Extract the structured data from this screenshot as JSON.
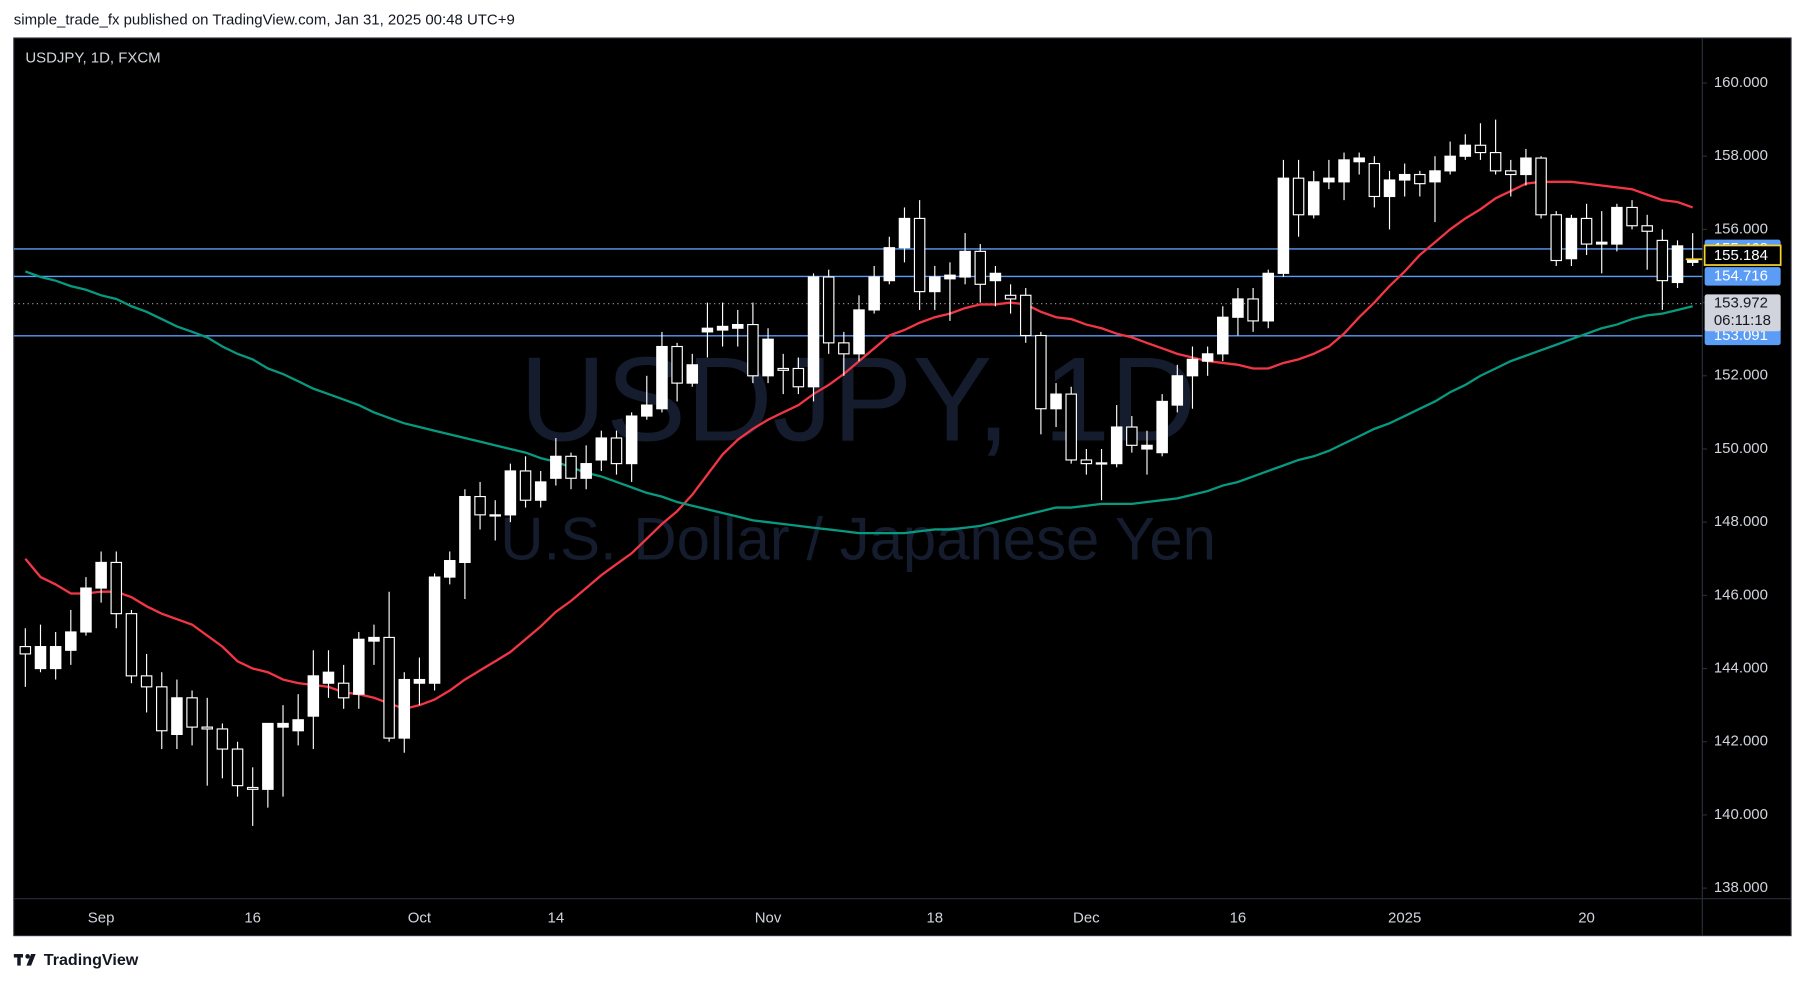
{
  "header": {
    "publisher": "simple_trade_fx published on TradingView.com, Jan 31, 2025 00:48 UTC+9"
  },
  "footer": {
    "brand": "TradingView"
  },
  "chart_data": {
    "type": "candlestick",
    "title": "USDJPY, 1D, FXCM",
    "watermark": "USDJPY, 1D",
    "subtitle": "U.S. Dollar / Japanese Yen",
    "categories": [
      null,
      null,
      null,
      null,
      null,
      "Sep",
      null,
      null,
      null,
      null,
      null,
      null,
      null,
      null,
      null,
      "16",
      null,
      null,
      null,
      null,
      null,
      null,
      null,
      null,
      null,
      null,
      "Oct",
      null,
      null,
      null,
      null,
      null,
      null,
      null,
      null,
      "14",
      null,
      null,
      null,
      null,
      null,
      null,
      null,
      null,
      null,
      null,
      null,
      null,
      null,
      "Nov",
      null,
      null,
      null,
      null,
      null,
      null,
      null,
      null,
      null,
      null,
      "18",
      null,
      null,
      null,
      null,
      null,
      null,
      null,
      null,
      null,
      "Dec",
      null,
      null,
      null,
      null,
      null,
      null,
      null,
      null,
      null,
      "16",
      null,
      null,
      null,
      null,
      null,
      null,
      null,
      null,
      null,
      null,
      "2025",
      null,
      null,
      null,
      null,
      null,
      null,
      null,
      null,
      null,
      null,
      null,
      "20",
      null,
      null,
      null,
      null,
      null,
      null,
      null
    ],
    "open": [
      144.6,
      144.0,
      144.0,
      144.5,
      145.0,
      146.2,
      146.9,
      145.5,
      143.8,
      143.5,
      142.2,
      143.2,
      142.4,
      142.35,
      141.8,
      140.75,
      140.7,
      142.4,
      142.3,
      142.7,
      143.6,
      143.6,
      143.3,
      144.75,
      144.85,
      142.1,
      143.6,
      143.6,
      146.5,
      146.9,
      148.7,
      148.2,
      148.2,
      149.4,
      148.6,
      149.2,
      149.8,
      149.2,
      149.7,
      150.3,
      149.6,
      150.9,
      151.1,
      152.8,
      151.8,
      153.2,
      153.25,
      153.3,
      153.4,
      152.0,
      152.2,
      152.2,
      151.7,
      154.7,
      152.9,
      152.6,
      153.8,
      154.6,
      155.5,
      156.3,
      154.3,
      154.65,
      154.7,
      155.4,
      154.6,
      154.2,
      154.2,
      153.1,
      151.1,
      151.5,
      149.7,
      149.6,
      149.6,
      150.6,
      150.0,
      149.9,
      151.2,
      152.0,
      152.4,
      152.6,
      153.6,
      154.1,
      153.5,
      154.8,
      157.4,
      156.4,
      157.3,
      157.3,
      157.85,
      157.8,
      156.9,
      157.35,
      157.5,
      157.3,
      157.6,
      158.0,
      158.3,
      158.1,
      157.6,
      157.5,
      157.95,
      156.4,
      155.2,
      156.3,
      155.6,
      155.6,
      156.6,
      156.1,
      155.7,
      154.55,
      155.1
    ],
    "high": [
      145.1,
      145.2,
      145.0,
      145.6,
      146.5,
      147.2,
      147.2,
      145.6,
      144.4,
      143.9,
      143.7,
      143.4,
      143.2,
      142.5,
      142.0,
      141.3,
      142.5,
      143.0,
      143.3,
      144.5,
      144.5,
      144.1,
      145.0,
      145.2,
      146.1,
      143.9,
      144.3,
      146.6,
      147.2,
      148.9,
      149.1,
      148.6,
      149.6,
      149.8,
      149.4,
      150.3,
      149.9,
      150.1,
      150.5,
      150.5,
      151.0,
      152.0,
      153.2,
      152.9,
      152.6,
      154.0,
      154.0,
      153.8,
      154.0,
      153.3,
      152.6,
      152.5,
      154.8,
      154.9,
      153.2,
      154.2,
      155.0,
      155.8,
      156.6,
      156.8,
      155.0,
      155.1,
      155.9,
      155.6,
      155.0,
      154.5,
      154.4,
      153.2,
      151.8,
      151.7,
      150.0,
      150.0,
      151.2,
      150.9,
      150.5,
      151.5,
      152.3,
      152.8,
      152.8,
      153.9,
      154.4,
      154.4,
      154.9,
      157.9,
      157.9,
      157.6,
      157.9,
      158.1,
      158.1,
      158.0,
      157.6,
      157.8,
      157.6,
      158.0,
      158.4,
      158.6,
      158.9,
      159.0,
      157.9,
      158.2,
      158.0,
      156.5,
      156.4,
      156.7,
      156.5,
      156.7,
      156.8,
      156.4,
      156.0,
      155.7,
      155.9
    ],
    "low": [
      143.5,
      143.9,
      143.7,
      144.1,
      144.9,
      145.8,
      145.1,
      143.6,
      142.8,
      141.8,
      141.8,
      141.9,
      140.8,
      141.0,
      140.5,
      139.7,
      140.2,
      140.5,
      141.9,
      141.8,
      143.2,
      142.9,
      142.9,
      144.1,
      142.0,
      141.7,
      143.0,
      143.4,
      146.3,
      145.9,
      147.8,
      147.5,
      148.0,
      148.4,
      148.4,
      149.0,
      148.9,
      148.9,
      149.4,
      149.3,
      149.1,
      150.8,
      151.0,
      151.3,
      151.7,
      152.5,
      152.8,
      152.8,
      151.8,
      151.8,
      151.5,
      151.5,
      151.3,
      152.6,
      152.0,
      152.4,
      153.7,
      154.5,
      155.1,
      153.8,
      153.8,
      153.5,
      154.5,
      154.0,
      153.9,
      153.7,
      152.9,
      150.4,
      150.6,
      149.6,
      149.3,
      148.6,
      149.5,
      149.9,
      149.3,
      149.8,
      151.0,
      151.1,
      152.0,
      152.4,
      153.1,
      153.2,
      153.3,
      154.7,
      155.8,
      156.3,
      157.1,
      156.8,
      157.5,
      156.6,
      156.0,
      156.9,
      156.9,
      156.2,
      157.5,
      157.9,
      157.9,
      157.5,
      156.9,
      157.2,
      156.3,
      155.0,
      155.0,
      155.3,
      154.8,
      155.4,
      156.0,
      154.9,
      153.8,
      154.4,
      155.0
    ],
    "close": [
      144.4,
      144.6,
      144.6,
      145.0,
      146.2,
      146.9,
      145.5,
      143.8,
      143.5,
      142.3,
      143.2,
      142.4,
      142.35,
      141.8,
      140.8,
      140.7,
      142.5,
      142.5,
      142.6,
      143.8,
      143.9,
      143.2,
      144.8,
      144.85,
      142.1,
      143.7,
      143.7,
      146.5,
      146.95,
      148.7,
      148.2,
      148.2,
      149.4,
      148.6,
      149.1,
      149.8,
      149.2,
      149.6,
      150.3,
      149.6,
      150.9,
      151.2,
      152.8,
      151.8,
      152.3,
      153.3,
      153.35,
      153.4,
      152.0,
      153.0,
      152.15,
      151.7,
      154.7,
      152.9,
      152.6,
      153.8,
      154.7,
      155.5,
      156.3,
      154.3,
      154.7,
      154.75,
      155.4,
      154.5,
      154.8,
      154.1,
      153.1,
      151.1,
      151.5,
      149.7,
      149.6,
      149.62,
      150.6,
      150.1,
      150.1,
      151.3,
      152.0,
      152.45,
      152.6,
      153.6,
      154.1,
      153.5,
      154.8,
      157.4,
      156.4,
      157.3,
      157.4,
      157.9,
      157.95,
      156.9,
      157.35,
      157.5,
      157.25,
      157.6,
      158.0,
      158.3,
      158.1,
      157.6,
      157.5,
      157.95,
      156.4,
      155.15,
      156.3,
      155.6,
      155.65,
      156.6,
      156.1,
      155.95,
      154.6,
      155.55,
      155.184
    ],
    "up_color": "#ffffff",
    "down_color": "#000000",
    "wick_color": "#ffffff",
    "lines": [
      {
        "color": "#f23645",
        "values": [
          147.0,
          146.5,
          146.3,
          146.05,
          146.05,
          146.1,
          146.1,
          145.95,
          145.7,
          145.5,
          145.35,
          145.2,
          144.9,
          144.6,
          144.2,
          144.0,
          143.9,
          143.7,
          143.6,
          143.55,
          143.5,
          143.35,
          143.3,
          143.2,
          143.05,
          142.9,
          143.0,
          143.15,
          143.4,
          143.7,
          143.95,
          144.2,
          144.45,
          144.8,
          145.15,
          145.55,
          145.85,
          146.2,
          146.55,
          146.85,
          147.15,
          147.55,
          147.95,
          148.3,
          148.75,
          149.3,
          149.85,
          150.25,
          150.55,
          150.8,
          151.0,
          151.2,
          151.5,
          151.75,
          152.05,
          152.4,
          152.75,
          153.1,
          153.25,
          153.45,
          153.6,
          153.7,
          153.85,
          153.95,
          153.95,
          154.0,
          153.95,
          153.75,
          153.6,
          153.55,
          153.4,
          153.3,
          153.15,
          153.05,
          152.9,
          152.75,
          152.6,
          152.5,
          152.4,
          152.35,
          152.3,
          152.2,
          152.2,
          152.35,
          152.45,
          152.6,
          152.8,
          153.15,
          153.6,
          154.0,
          154.45,
          154.85,
          155.3,
          155.65,
          156.0,
          156.3,
          156.55,
          156.85,
          157.05,
          157.25,
          157.3,
          157.3,
          157.3,
          157.25,
          157.2,
          157.15,
          157.1,
          156.95,
          156.8,
          156.75,
          156.6
        ]
      },
      {
        "color": "#089981",
        "values": [
          154.85,
          154.7,
          154.6,
          154.45,
          154.35,
          154.2,
          154.1,
          153.9,
          153.75,
          153.55,
          153.35,
          153.2,
          153.05,
          152.8,
          152.6,
          152.45,
          152.2,
          152.05,
          151.85,
          151.65,
          151.5,
          151.35,
          151.2,
          151.0,
          150.85,
          150.7,
          150.6,
          150.5,
          150.4,
          150.3,
          150.2,
          150.1,
          150.0,
          149.9,
          149.75,
          149.65,
          149.5,
          149.35,
          149.25,
          149.1,
          148.95,
          148.8,
          148.7,
          148.55,
          148.45,
          148.35,
          148.25,
          148.15,
          148.05,
          148.0,
          147.95,
          147.9,
          147.85,
          147.8,
          147.75,
          147.7,
          147.7,
          147.7,
          147.7,
          147.75,
          147.8,
          147.8,
          147.85,
          147.9,
          148.0,
          148.1,
          148.2,
          148.3,
          148.4,
          148.4,
          148.45,
          148.5,
          148.5,
          148.5,
          148.55,
          148.6,
          148.65,
          148.75,
          148.85,
          149.0,
          149.1,
          149.25,
          149.4,
          149.55,
          149.7,
          149.8,
          149.95,
          150.15,
          150.35,
          150.55,
          150.7,
          150.9,
          151.1,
          151.3,
          151.55,
          151.75,
          152.0,
          152.2,
          152.4,
          152.55,
          152.7,
          152.85,
          153.0,
          153.15,
          153.3,
          153.4,
          153.55,
          153.65,
          153.7,
          153.8,
          153.9
        ]
      }
    ],
    "hlines": [
      {
        "value": 155.468,
        "color": "#5b9cf6"
      },
      {
        "value": 154.716,
        "color": "#5b9cf6"
      },
      {
        "value": 153.091,
        "color": "#5b9cf6"
      }
    ],
    "dotted_line": {
      "value": 153.972,
      "color": "#9598a1"
    },
    "countdown": "06:11:18",
    "last_price": {
      "value": 155.184,
      "color": "#f7d22d"
    },
    "ylim": [
      137.71,
      161.23
    ],
    "yticks": [
      {
        "value": 138,
        "label": "138.000"
      },
      {
        "value": 140,
        "label": "140.000"
      },
      {
        "value": 142,
        "label": "142.000"
      },
      {
        "value": 144,
        "label": "144.000"
      },
      {
        "value": 146,
        "label": "146.000"
      },
      {
        "value": 148,
        "label": "148.000"
      },
      {
        "value": 150,
        "label": "150.000"
      },
      {
        "value": 152,
        "label": "152.000"
      },
      {
        "value": 154,
        "label": "154.000"
      },
      {
        "value": 156,
        "label": "156.000"
      },
      {
        "value": 158,
        "label": "158.000"
      },
      {
        "value": 160,
        "label": "160.000"
      }
    ],
    "grid": false
  }
}
